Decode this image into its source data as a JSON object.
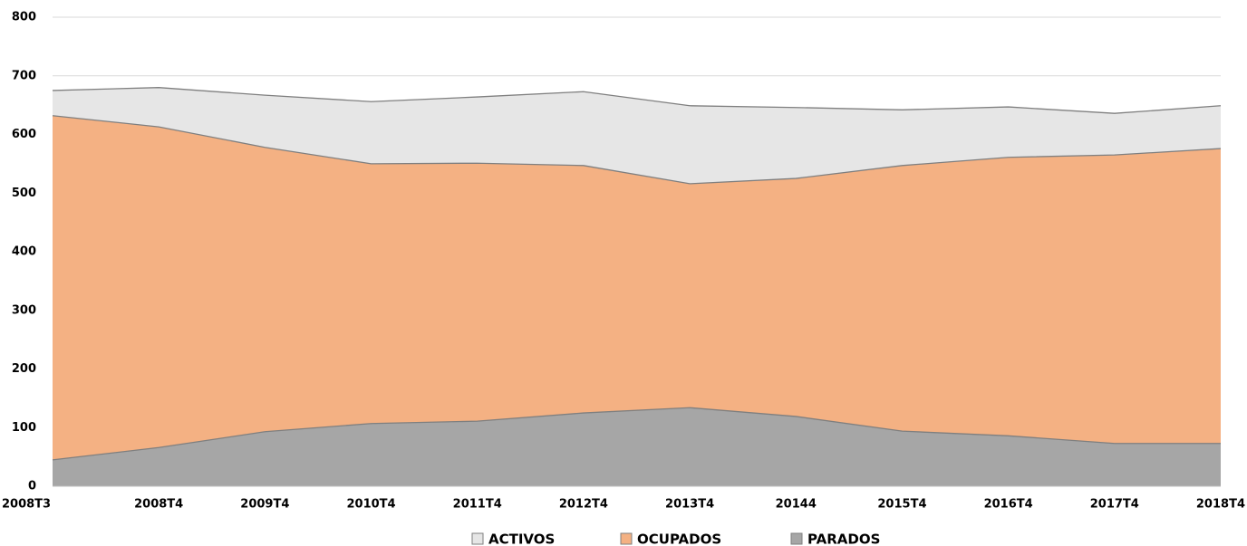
{
  "chart_data": {
    "type": "area",
    "categories": [
      "2008T3",
      "2008T4",
      "2009T4",
      "2010T4",
      "2011T4",
      "2012T4",
      "2013T4",
      "20144",
      "2015T4",
      "2016T4",
      "2017T4",
      "2018T4"
    ],
    "series": [
      {
        "name": "ACTIVOS",
        "color": "#e6e6e6",
        "values": [
          675,
          680,
          667,
          656,
          664,
          673,
          649,
          646,
          642,
          647,
          636,
          649
        ]
      },
      {
        "name": "OCUPADOS",
        "color": "#f4b183",
        "values": [
          632,
          613,
          578,
          550,
          551,
          547,
          516,
          525,
          547,
          561,
          565,
          576
        ]
      },
      {
        "name": "PARADOS",
        "color": "#a6a6a6",
        "values": [
          45,
          66,
          93,
          107,
          111,
          125,
          134,
          119,
          94,
          86,
          73,
          73
        ]
      }
    ],
    "ylim": [
      0,
      800
    ],
    "yticks": [
      0,
      100,
      200,
      300,
      400,
      500,
      600,
      700,
      800
    ],
    "grid": true,
    "legend": "bottom"
  }
}
